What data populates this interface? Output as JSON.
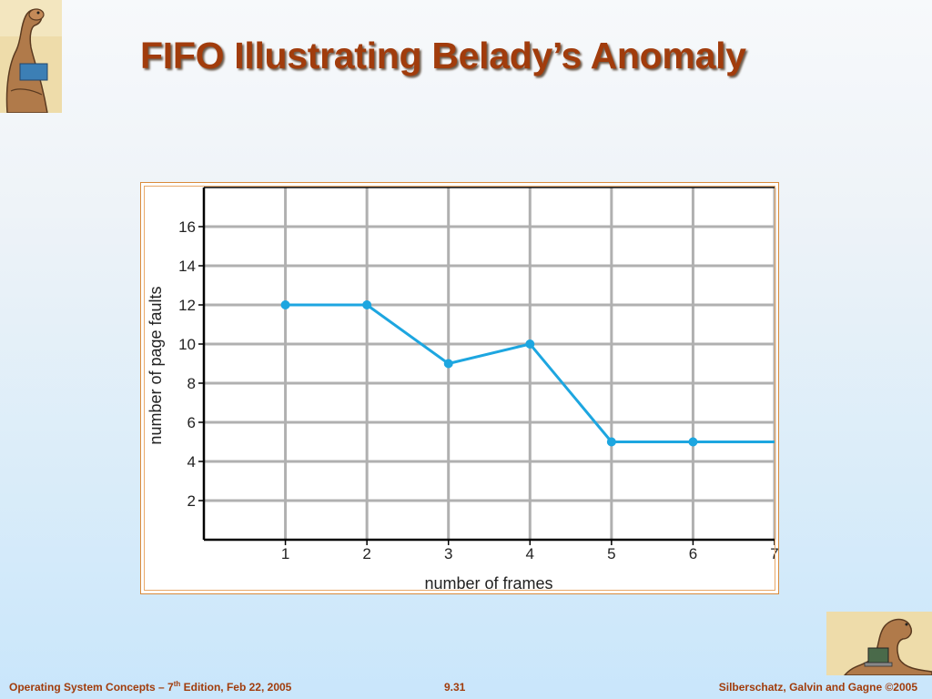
{
  "slide": {
    "title": "FIFO Illustrating Belady’s Anomaly"
  },
  "footer": {
    "left_prefix": "Operating System Concepts – 7",
    "left_sup": "th",
    "left_suffix": " Edition, Feb 22, 2005",
    "page": "9.31",
    "copyright": "Silberschatz, Galvin and Gagne ©2005"
  },
  "logos": {
    "top_left": "dinosaur-logo",
    "bottom_right": "dinosaur-laptop-logo"
  },
  "colors": {
    "title": "#a13c0c",
    "line": "#1da6e0",
    "grid": "#b0b0b0",
    "frame_border": "#d98a3a"
  },
  "chart_data": {
    "type": "line",
    "title": "",
    "xlabel": "number of frames",
    "ylabel": "number of page faults",
    "x": [
      1,
      2,
      3,
      4,
      5,
      6,
      7
    ],
    "series": [
      {
        "values": [
          12,
          12,
          9,
          10,
          5,
          5,
          5
        ]
      }
    ],
    "xticks": [
      1,
      2,
      3,
      4,
      5,
      6,
      7
    ],
    "yticks": [
      2,
      4,
      6,
      8,
      10,
      12,
      14,
      16
    ],
    "xlim": [
      0,
      7
    ],
    "ylim": [
      0,
      18
    ],
    "grid": true,
    "legend": "none"
  }
}
